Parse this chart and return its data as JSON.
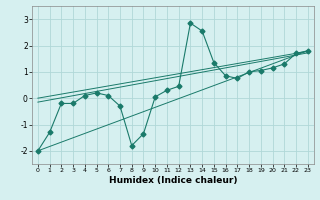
{
  "title": "",
  "xlabel": "Humidex (Indice chaleur)",
  "ylabel": "",
  "background_color": "#d6f0f0",
  "line_color": "#1a7a6a",
  "grid_color": "#b0d8d8",
  "xlim": [
    -0.5,
    23.5
  ],
  "ylim": [
    -2.5,
    3.5
  ],
  "yticks": [
    -2,
    -1,
    0,
    1,
    2,
    3
  ],
  "xticks": [
    0,
    1,
    2,
    3,
    4,
    5,
    6,
    7,
    8,
    9,
    10,
    11,
    12,
    13,
    14,
    15,
    16,
    17,
    18,
    19,
    20,
    21,
    22,
    23
  ],
  "series": [
    {
      "x": [
        0,
        1,
        2,
        3,
        4,
        5,
        6,
        7,
        8,
        9,
        10,
        11,
        12,
        13,
        14,
        15,
        16,
        17,
        18,
        19,
        20,
        21,
        22,
        23
      ],
      "y": [
        -2.0,
        -1.3,
        -0.2,
        -0.2,
        0.1,
        0.2,
        0.1,
        -0.3,
        -1.8,
        -1.35,
        0.05,
        0.3,
        0.45,
        2.85,
        2.55,
        1.35,
        0.85,
        0.75,
        1.0,
        1.05,
        1.15,
        1.3,
        1.7,
        1.8
      ],
      "marker": "D",
      "markersize": 2.5
    },
    {
      "x": [
        0,
        23
      ],
      "y": [
        -2.0,
        1.8
      ],
      "marker": null,
      "markersize": 0
    },
    {
      "x": [
        0,
        23
      ],
      "y": [
        -0.15,
        1.72
      ],
      "marker": null,
      "markersize": 0
    },
    {
      "x": [
        0,
        23
      ],
      "y": [
        0.0,
        1.78
      ],
      "marker": null,
      "markersize": 0
    }
  ]
}
